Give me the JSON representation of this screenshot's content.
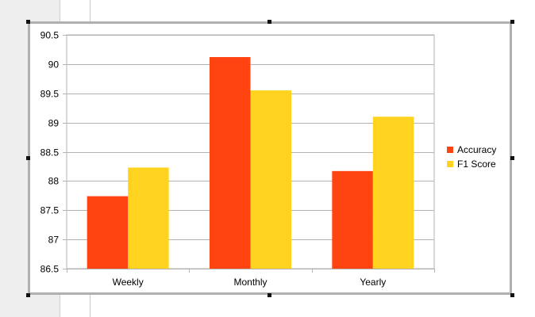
{
  "chart_data": {
    "type": "bar",
    "categories": [
      "Weekly",
      "Monthly",
      "Yearly"
    ],
    "series": [
      {
        "name": "Accuracy",
        "values": [
          87.74,
          90.12,
          88.17
        ],
        "color": "#ff4412"
      },
      {
        "name": "F1 Score",
        "values": [
          88.23,
          89.55,
          89.1
        ],
        "color": "#ffd320"
      }
    ],
    "ylim": [
      86.5,
      90.5
    ],
    "yticks": [
      "86.5",
      "87",
      "87.5",
      "88",
      "88.5",
      "89",
      "89.5",
      "90",
      "90.5"
    ],
    "grid": true,
    "legend": "right",
    "title": "",
    "xlabel": "",
    "ylabel": ""
  }
}
